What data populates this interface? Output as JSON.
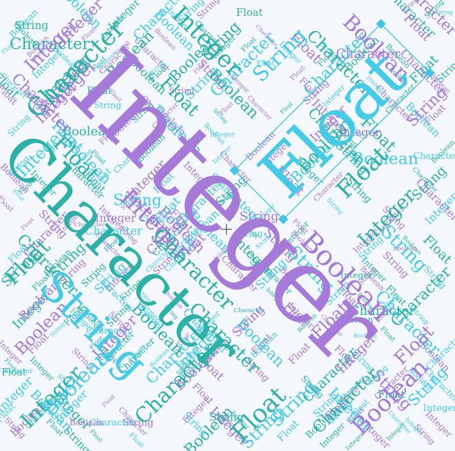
{
  "palette": {
    "purple": "#a57ad8",
    "teal": "#2bb1a5",
    "cyan": "#45cbe8",
    "background": "#f4f8fc"
  },
  "words": {
    "integer": "Integer",
    "character": "Character",
    "string": "String",
    "float": "Float",
    "boolean": "Boolean"
  },
  "selected_word": "Float",
  "cursor_icon": "crosshair-icon"
}
